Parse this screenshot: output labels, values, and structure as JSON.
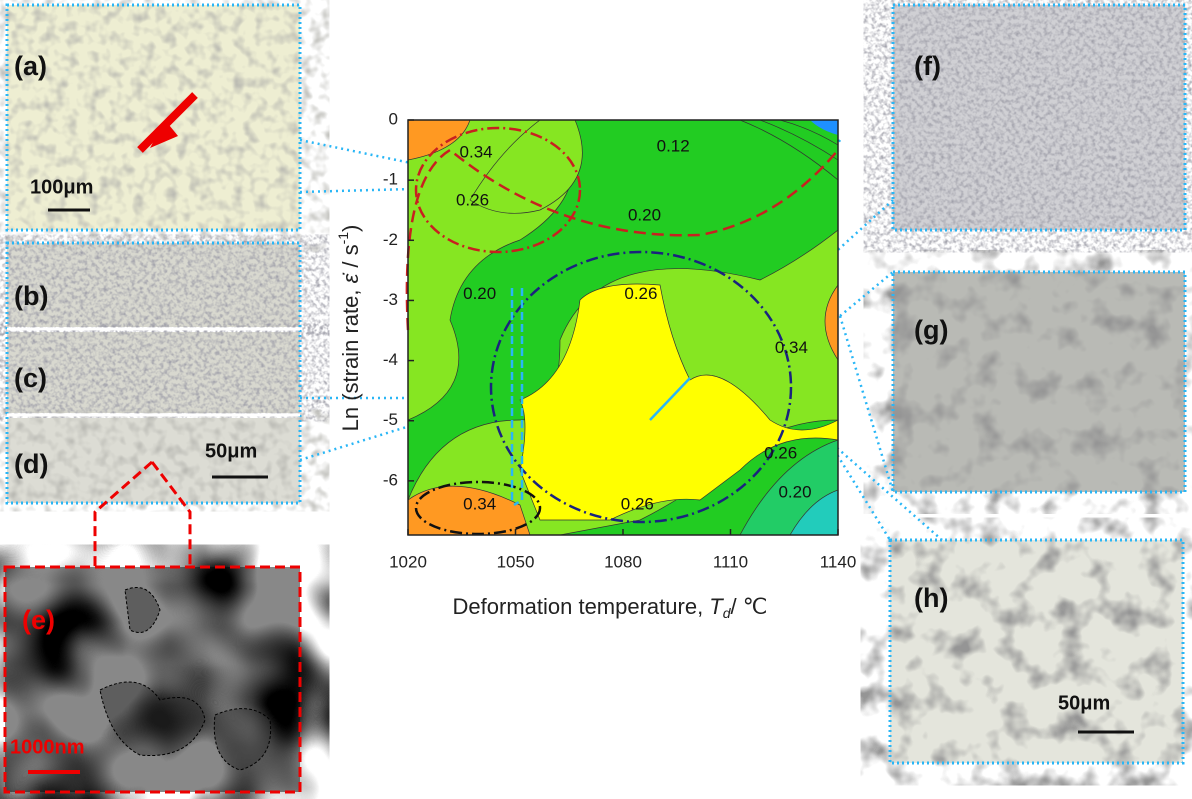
{
  "chart_data": {
    "type": "contour",
    "xlabel": [
      "Deformation temperature, ",
      "T",
      "d",
      "/ ℃"
    ],
    "ylabel": [
      "Ln (strain rate, ",
      "ε̇",
      " / s",
      "-1",
      ")"
    ],
    "xlim": [
      1020,
      1140
    ],
    "xticks": [
      1020,
      1050,
      1080,
      1110,
      1140
    ],
    "ylim": [
      -6.9,
      0
    ],
    "yticks": [
      0,
      -1,
      -2,
      -3,
      -4,
      -5,
      -6
    ],
    "contour_labels": [
      {
        "x": 1039,
        "y": -0.55,
        "text": 0.34
      },
      {
        "x": 1094,
        "y": -0.45,
        "text": 0.12
      },
      {
        "x": 1038,
        "y": -1.35,
        "text": 0.26
      },
      {
        "x": 1086,
        "y": -1.6,
        "text": {
          "value": 0.2,
          "label": "0.20"
        }
      },
      {
        "x": 1040,
        "y": -2.9,
        "text": {
          "value": 0.2,
          "label": "0.20"
        }
      },
      {
        "x": 1085,
        "y": -2.9,
        "text": 0.26
      },
      {
        "x": 1127,
        "y": -3.8,
        "text": 0.34
      },
      {
        "x": 1124,
        "y": -5.55,
        "text": 0.26
      },
      {
        "x": 1128,
        "y": -6.2,
        "text": {
          "value": 0.2,
          "label": "0.20"
        }
      },
      {
        "x": 1040,
        "y": -6.4,
        "text": 0.34
      },
      {
        "x": 1084,
        "y": -6.4,
        "text": 0.26
      }
    ]
  },
  "panels": {
    "a": {
      "label": "(a)",
      "scale": "100μm"
    },
    "b": {
      "label": "(b)"
    },
    "c": {
      "label": "(c)"
    },
    "d": {
      "label": "(d)",
      "scale": "50μm"
    },
    "e": {
      "label": "(e)",
      "scale": "1000nm"
    },
    "f": {
      "label": "(f)"
    },
    "g": {
      "label": "(g)"
    },
    "h": {
      "label": "(h)",
      "scale": "50μm"
    }
  }
}
